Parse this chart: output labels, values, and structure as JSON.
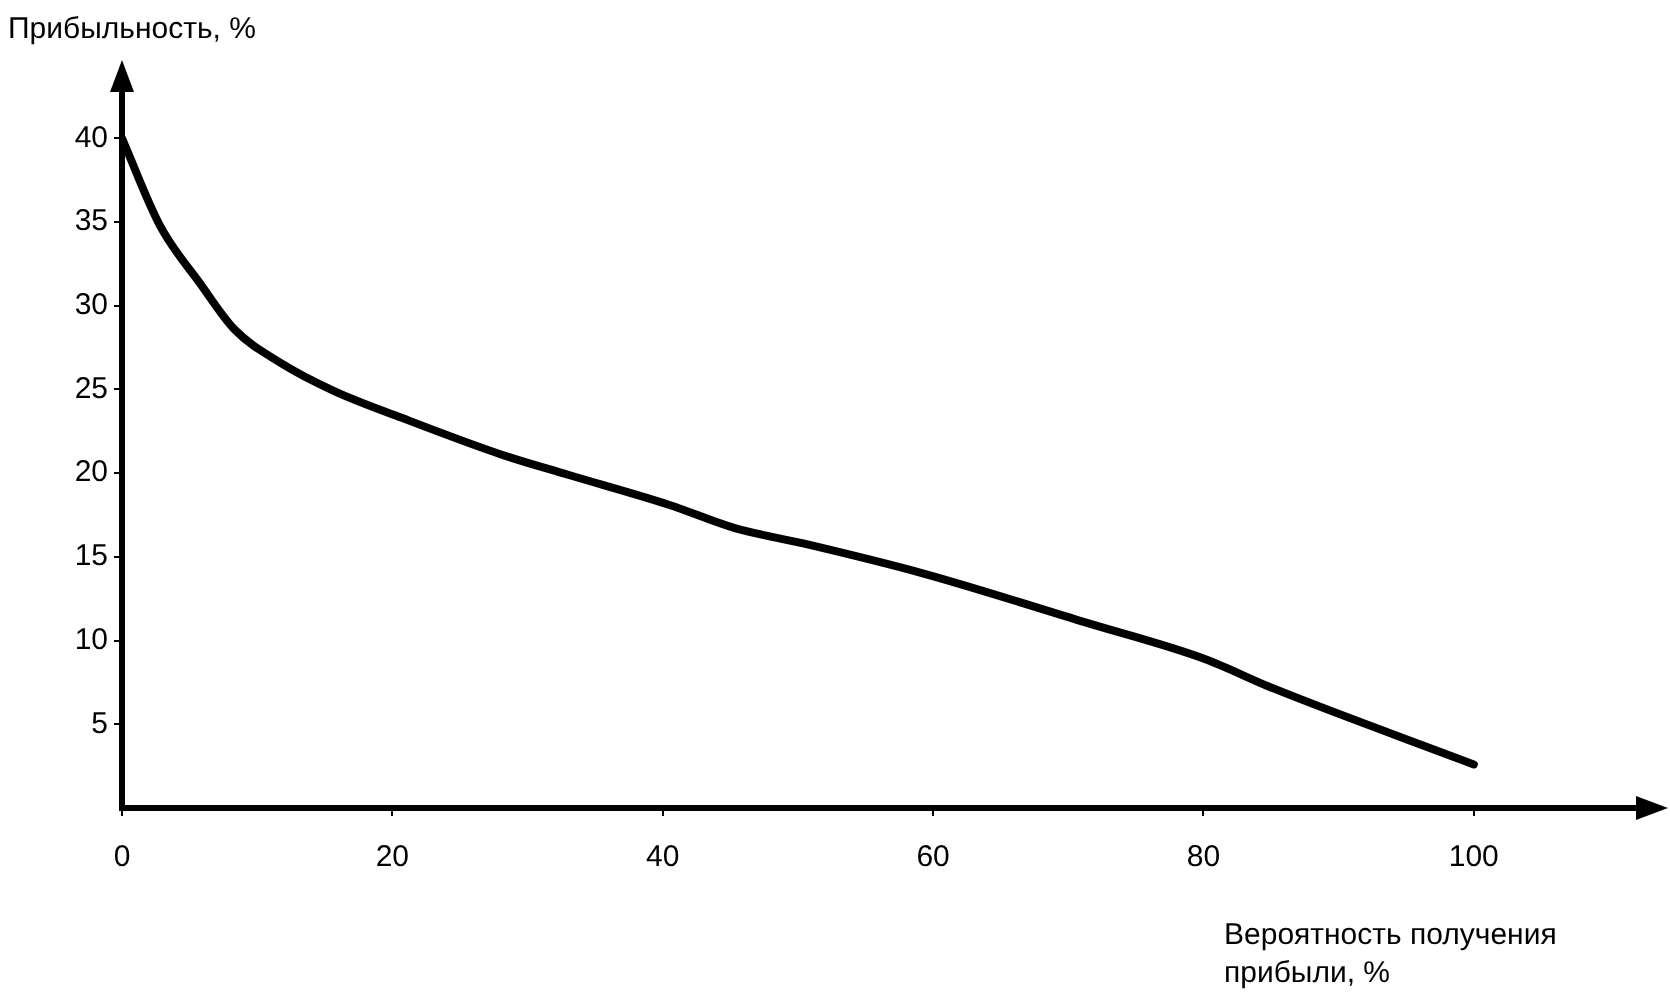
{
  "chart_data": {
    "type": "line",
    "ylabel": "Прибыльность, %",
    "xlabel": "Вероятность получения прибыли, %",
    "series": [
      {
        "color": "#000000",
        "x": [
          0,
          2.8,
          5.8,
          8.3,
          11.7,
          15.7,
          20.7,
          28.1,
          33,
          40.5,
          45.4,
          50.4,
          59.3,
          71.2,
          80.1,
          85,
          100
        ],
        "values": [
          40,
          34.8,
          31.3,
          28.6,
          26.6,
          24.9,
          23.3,
          21.1,
          19.9,
          18.1,
          16.7,
          15.8,
          14,
          11.1,
          8.9,
          7.2,
          2.6
        ]
      }
    ],
    "xlim": [
      0,
      112
    ],
    "ylim": [
      0,
      43
    ],
    "xticks": [
      0,
      20,
      40,
      60,
      80,
      100
    ],
    "yticks": [
      5,
      10,
      15,
      20,
      25,
      30,
      35,
      40
    ],
    "grid": false,
    "legend": false,
    "marker": "none",
    "line_style": "solid"
  }
}
